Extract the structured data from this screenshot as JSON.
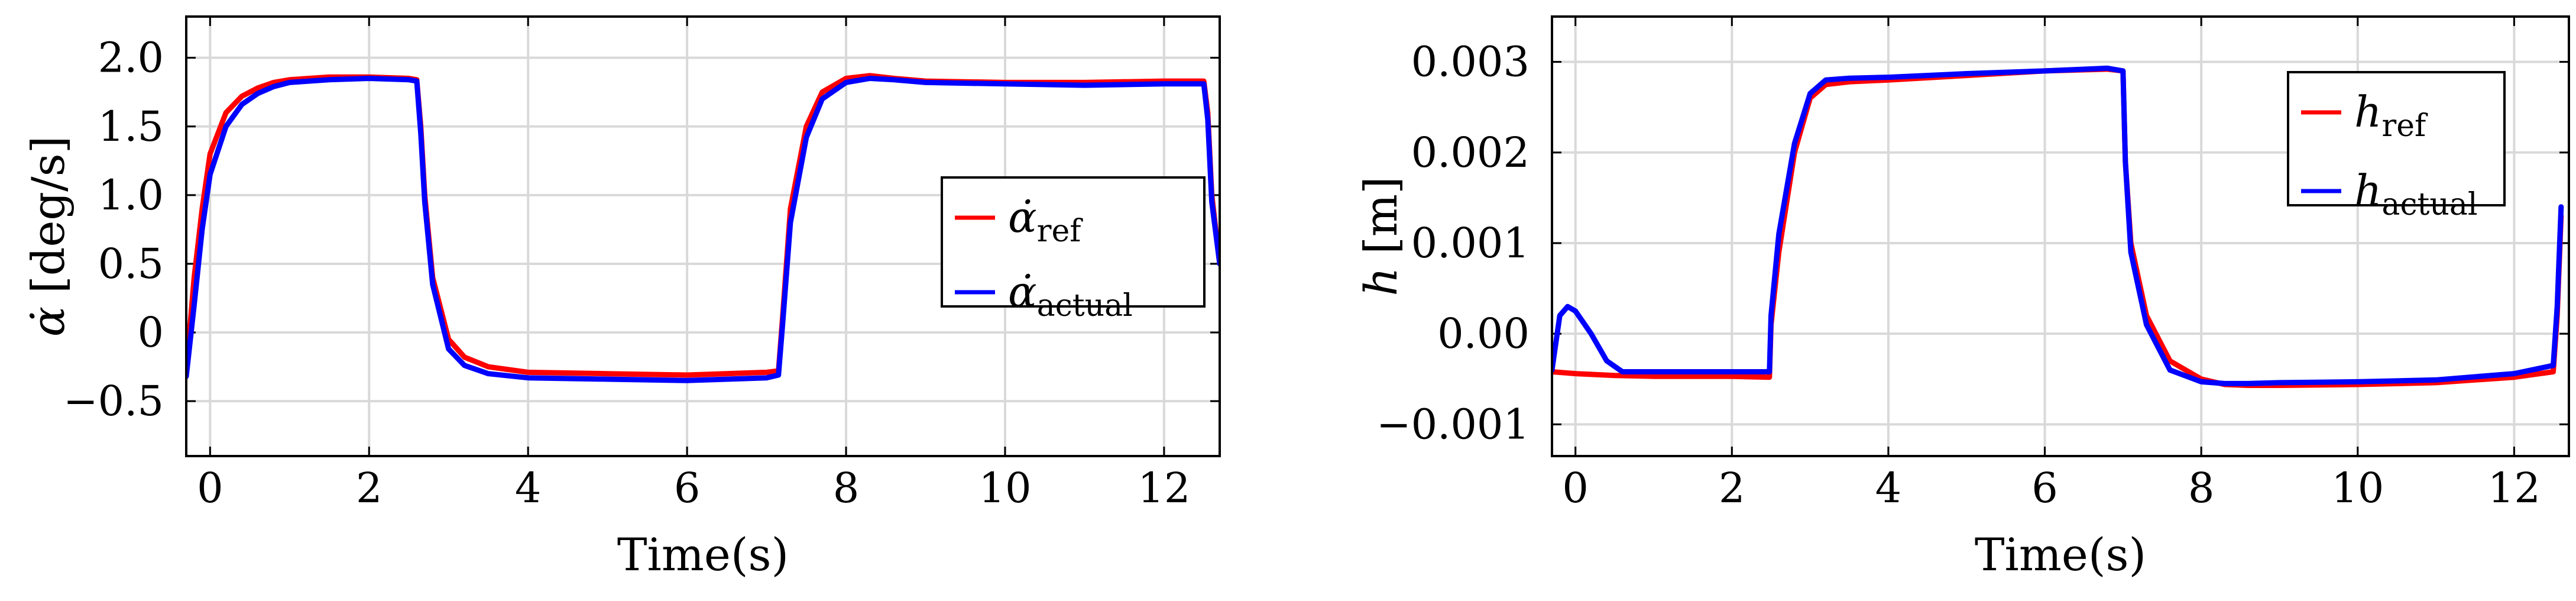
{
  "chart_data": [
    {
      "type": "line",
      "xlabel": "Time(s)",
      "ylabel": {
        "symbol": "α̇",
        "unit": "[deg/s]"
      },
      "xlim": [
        -0.3,
        12.7
      ],
      "ylim": [
        -0.9,
        2.3
      ],
      "xticks": [
        0,
        2,
        4,
        6,
        8,
        10,
        12
      ],
      "xtick_labels": [
        "0",
        "2",
        "4",
        "6",
        "8",
        "10",
        "12"
      ],
      "yticks": [
        -0.5,
        0,
        0.5,
        1.0,
        1.5,
        2.0
      ],
      "ytick_labels": [
        "−0.5",
        "0",
        "0.5",
        "1.0",
        "1.5",
        "2.0"
      ],
      "grid": true,
      "legend_position": "center-right",
      "series": [
        {
          "name": "α̇ref",
          "legend": {
            "main": "α̇",
            "sub": "ref"
          },
          "color": "#ff0000",
          "x": [
            -0.3,
            -0.2,
            -0.1,
            0,
            0.2,
            0.4,
            0.6,
            0.8,
            1,
            1.5,
            2,
            2.5,
            2.6,
            2.65,
            2.7,
            2.8,
            3,
            3.2,
            3.5,
            4,
            5,
            6,
            7,
            7.15,
            7.2,
            7.3,
            7.5,
            7.7,
            8,
            8.3,
            8.6,
            9,
            10,
            11,
            12,
            12.5,
            12.55,
            12.6,
            12.7
          ],
          "y": [
            -0.28,
            0.4,
            0.9,
            1.3,
            1.6,
            1.72,
            1.78,
            1.82,
            1.84,
            1.86,
            1.86,
            1.85,
            1.84,
            1.5,
            1.0,
            0.4,
            -0.05,
            -0.18,
            -0.25,
            -0.29,
            -0.3,
            -0.31,
            -0.29,
            -0.28,
            0.1,
            0.9,
            1.5,
            1.75,
            1.85,
            1.87,
            1.85,
            1.83,
            1.82,
            1.82,
            1.83,
            1.83,
            1.6,
            1.0,
            0.5
          ]
        },
        {
          "name": "α̇actual",
          "legend": {
            "main": "α̇",
            "sub": "actual"
          },
          "color": "#0000ff",
          "x": [
            -0.3,
            -0.2,
            -0.1,
            0,
            0.2,
            0.4,
            0.6,
            0.8,
            1,
            1.5,
            2,
            2.5,
            2.6,
            2.65,
            2.7,
            2.8,
            3,
            3.2,
            3.5,
            4,
            5,
            6,
            7,
            7.15,
            7.2,
            7.3,
            7.5,
            7.7,
            8,
            8.3,
            8.6,
            9,
            10,
            11,
            12,
            12.5,
            12.55,
            12.6,
            12.7
          ],
          "y": [
            -0.32,
            0.2,
            0.75,
            1.15,
            1.5,
            1.66,
            1.74,
            1.79,
            1.82,
            1.84,
            1.85,
            1.84,
            1.83,
            1.45,
            0.95,
            0.35,
            -0.12,
            -0.24,
            -0.3,
            -0.33,
            -0.34,
            -0.35,
            -0.33,
            -0.31,
            0.05,
            0.8,
            1.42,
            1.7,
            1.82,
            1.85,
            1.84,
            1.82,
            1.81,
            1.8,
            1.81,
            1.81,
            1.55,
            0.95,
            0.5
          ]
        }
      ]
    },
    {
      "type": "line",
      "xlabel": "Time(s)",
      "ylabel": {
        "symbol": "h",
        "unit": "[m]"
      },
      "xlim": [
        -0.3,
        12.7
      ],
      "ylim": [
        -0.00135,
        0.0035
      ],
      "xticks": [
        0,
        2,
        4,
        6,
        8,
        10,
        12
      ],
      "xtick_labels": [
        "0",
        "2",
        "4",
        "6",
        "8",
        "10",
        "12"
      ],
      "yticks": [
        -0.001,
        0,
        0.001,
        0.002,
        0.003
      ],
      "ytick_labels": [
        "−0.001",
        "0.00",
        "0.001",
        "0.002",
        "0.003"
      ],
      "grid": true,
      "legend_position": "top-right",
      "series": [
        {
          "name": "href",
          "legend": {
            "main": "h",
            "sub": "ref"
          },
          "color": "#ff0000",
          "x": [
            -0.3,
            0,
            0.5,
            1,
            1.5,
            2,
            2.48,
            2.5,
            2.6,
            2.8,
            3,
            3.2,
            3.5,
            4,
            5,
            6,
            6.8,
            7,
            7.03,
            7.1,
            7.3,
            7.6,
            8,
            8.3,
            8.6,
            9,
            10,
            11,
            12,
            12.5,
            12.55,
            12.6
          ],
          "y": [
            -0.00042,
            -0.00044,
            -0.00046,
            -0.00047,
            -0.00047,
            -0.00047,
            -0.00048,
            0.0001,
            0.0009,
            0.002,
            0.0026,
            0.00275,
            0.00278,
            0.0028,
            0.00285,
            0.0029,
            0.00292,
            0.0029,
            0.0019,
            0.001,
            0.0002,
            -0.0003,
            -0.0005,
            -0.00056,
            -0.00057,
            -0.00057,
            -0.00056,
            -0.00054,
            -0.00048,
            -0.00042,
            0.0002,
            0.0013
          ]
        },
        {
          "name": "hactual",
          "legend": {
            "main": "h",
            "sub": "actual"
          },
          "color": "#0000ff",
          "x": [
            -0.3,
            -0.2,
            -0.1,
            0,
            0.2,
            0.4,
            0.6,
            1,
            1.5,
            2,
            2.48,
            2.5,
            2.6,
            2.8,
            3,
            3.2,
            3.5,
            4,
            5,
            6,
            6.8,
            7,
            7.03,
            7.1,
            7.3,
            7.6,
            8,
            8.3,
            8.6,
            9,
            10,
            11,
            12,
            12.5,
            12.55,
            12.6
          ],
          "y": [
            -0.0004,
            0.0002,
            0.0003,
            0.00025,
            0.0,
            -0.0003,
            -0.00042,
            -0.00042,
            -0.00042,
            -0.00042,
            -0.00042,
            0.0002,
            0.0011,
            0.0021,
            0.00265,
            0.0028,
            0.00282,
            0.00283,
            0.00287,
            0.0029,
            0.00293,
            0.0029,
            0.0019,
            0.0009,
            0.0001,
            -0.0004,
            -0.00053,
            -0.00055,
            -0.00055,
            -0.00054,
            -0.00053,
            -0.00051,
            -0.00044,
            -0.00035,
            0.0003,
            0.0014
          ]
        }
      ]
    }
  ]
}
